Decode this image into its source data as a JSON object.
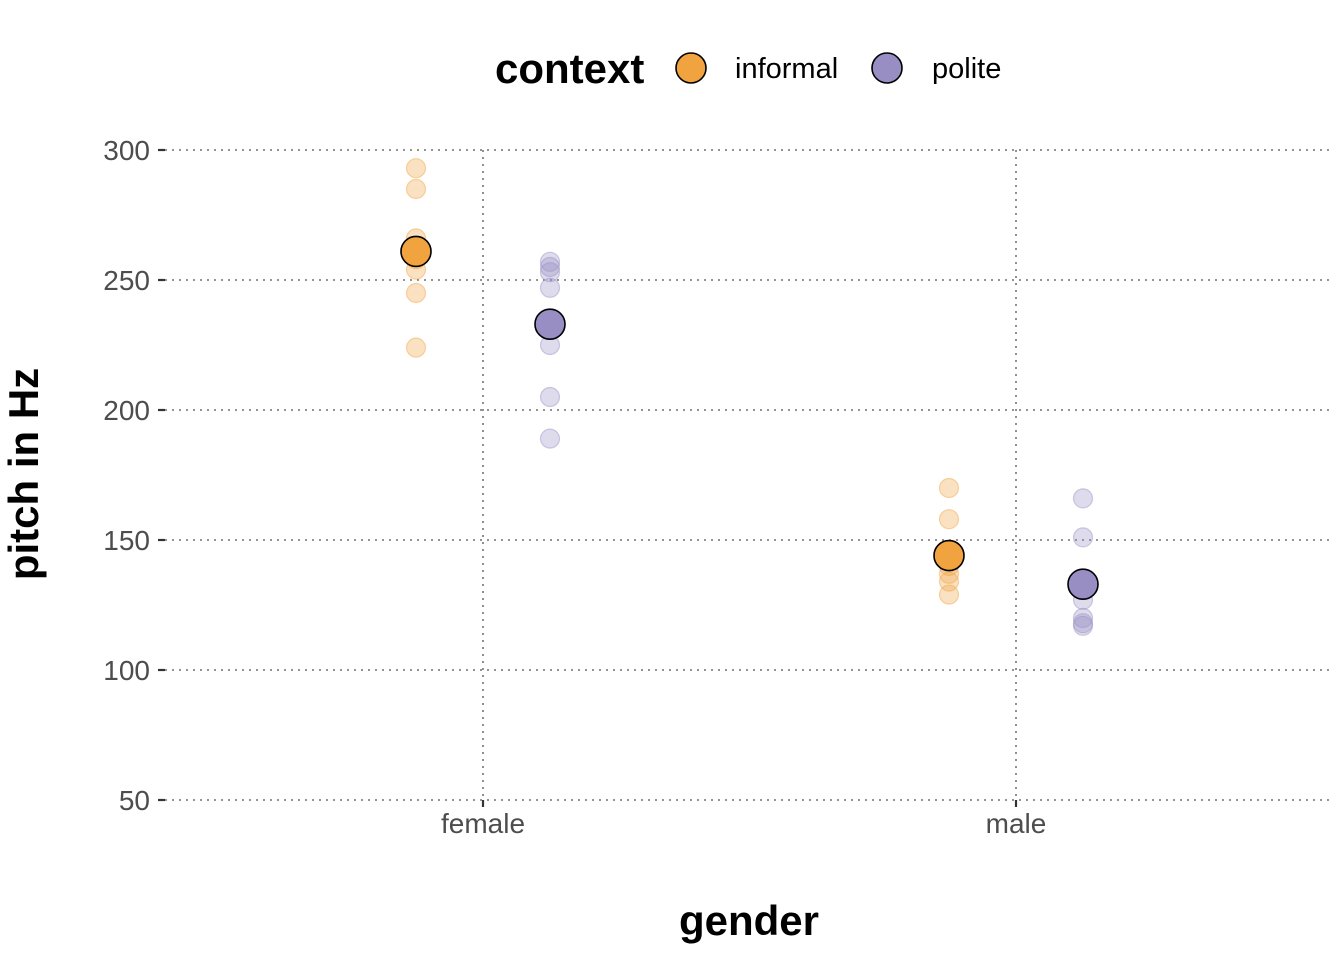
{
  "chart_data": {
    "type": "scatter",
    "xlabel": "gender",
    "ylabel": "pitch in Hz",
    "categories": [
      "female",
      "male"
    ],
    "ylim": [
      50,
      300
    ],
    "yticks": [
      50,
      100,
      150,
      200,
      250,
      300
    ],
    "grid": "dotted",
    "legend": {
      "title": "context",
      "placement": "top",
      "entries": [
        "informal",
        "polite"
      ]
    },
    "colors": {
      "informal": "#f1a340",
      "polite": "#998ec3"
    },
    "series": [
      {
        "name": "informal",
        "raw": {
          "female": [
            293,
            285,
            266,
            263,
            258,
            254,
            245,
            224
          ],
          "male": [
            170,
            158,
            140,
            137,
            134,
            129
          ]
        },
        "means": {
          "female": 261,
          "male": 144
        }
      },
      {
        "name": "polite",
        "raw": {
          "female": [
            257,
            255,
            253,
            247,
            232,
            225,
            205,
            189
          ],
          "male": [
            166,
            151,
            127,
            120,
            118,
            117
          ]
        },
        "means": {
          "female": 233,
          "male": 133
        }
      }
    ]
  }
}
